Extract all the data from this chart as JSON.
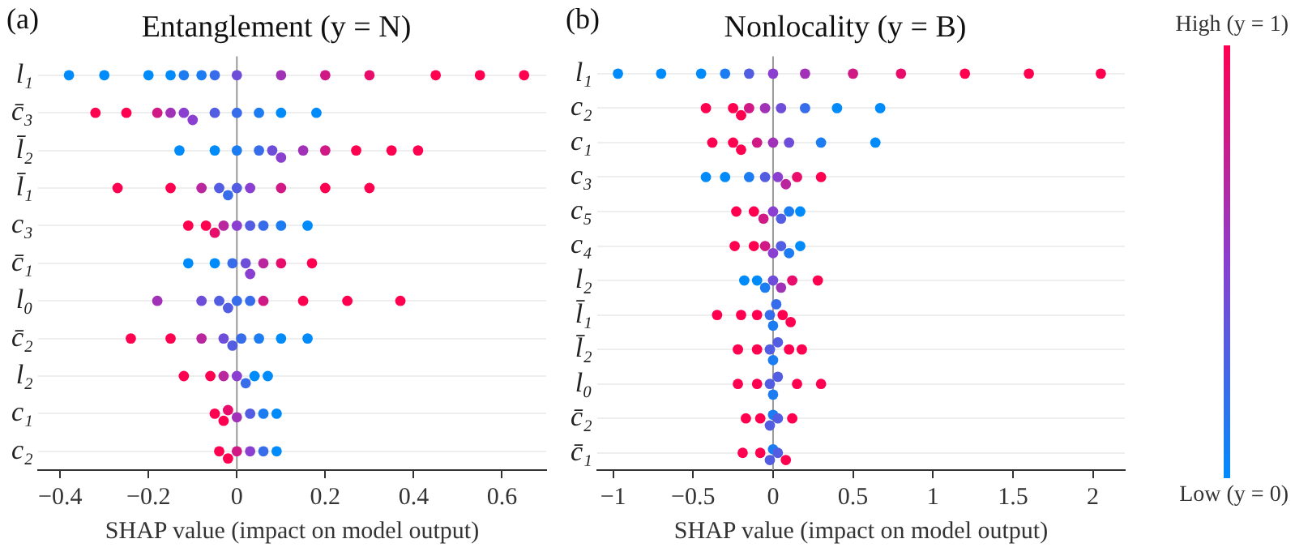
{
  "chart_data": [
    {
      "type": "scatter",
      "orientation": "horizontal",
      "title": "Entanglement (y = N)",
      "annotations": [
        "(a)"
      ],
      "xlabel": "SHAP value (impact on model output)",
      "xlim": [
        -0.45,
        0.7
      ],
      "xticks": [
        -0.4,
        -0.2,
        0.0,
        0.2,
        0.4,
        0.6
      ],
      "categories": [
        "l₁",
        "c̄₃",
        "l̄₂",
        "l̄₁",
        "c₃",
        "c̄₁",
        "l₀",
        "c̄₂",
        "l₂",
        "c₁",
        "c₂"
      ],
      "grid": "y",
      "marker": "circle",
      "ref_lines": [
        {
          "axis": "x",
          "value": 0,
          "color": "#999999"
        }
      ],
      "series": [
        {
          "x": [
            "l₁",
            "l₁",
            "l₁",
            "l₁",
            "l₁",
            "l₁",
            "l₁",
            "l₁",
            "l₁",
            "l₁",
            "l₁",
            "l₁",
            "l₁",
            "l₁"
          ],
          "values": [
            -0.38,
            -0.3,
            -0.2,
            -0.15,
            -0.12,
            -0.08,
            -0.05,
            0.0,
            0.1,
            0.2,
            0.3,
            0.45,
            0.55,
            0.65
          ],
          "colors": [
            "#008bfb",
            "#008bfb",
            "#008bfb",
            "#008bfb",
            "#1c7cf2",
            "#1c7cf2",
            "#376dea",
            "#6e4ed9",
            "#a132b7",
            "#d01984",
            "#e80d6a",
            "#ff0051",
            "#ff0051",
            "#ff0051"
          ]
        },
        {
          "x": [
            "c̄₃",
            "c̄₃",
            "c̄₃",
            "c̄₃",
            "c̄₃",
            "c̄₃",
            "c̄₃",
            "c̄₃",
            "c̄₃",
            "c̄₃",
            "c̄₃"
          ],
          "values": [
            -0.32,
            -0.25,
            -0.18,
            -0.15,
            -0.12,
            -0.1,
            -0.05,
            0.0,
            0.05,
            0.1,
            0.18
          ],
          "colors": [
            "#ff0051",
            "#ff0051",
            "#d01984",
            "#a132b7",
            "#8a3fd0",
            "#8a3fd0",
            "#535de1",
            "#376dea",
            "#1c7cf2",
            "#008bfb",
            "#008bfb"
          ]
        },
        {
          "x": [
            "l̄₂",
            "l̄₂",
            "l̄₂",
            "l̄₂",
            "l̄₂",
            "l̄₂",
            "l̄₂",
            "l̄₂",
            "l̄₂",
            "l̄₂",
            "l̄₂"
          ],
          "values": [
            -0.13,
            -0.05,
            0.0,
            0.05,
            0.08,
            0.1,
            0.15,
            0.2,
            0.27,
            0.35,
            0.41
          ],
          "colors": [
            "#008bfb",
            "#008bfb",
            "#1c7cf2",
            "#376dea",
            "#6e4ed9",
            "#8a3fd0",
            "#a132b7",
            "#d01984",
            "#ff0051",
            "#ff0051",
            "#ff0051"
          ]
        },
        {
          "x": [
            "l̄₁",
            "l̄₁",
            "l̄₁",
            "l̄₁",
            "l̄₁",
            "l̄₁",
            "l̄₁",
            "l̄₁",
            "l̄₁",
            "l̄₁"
          ],
          "values": [
            -0.27,
            -0.15,
            -0.08,
            -0.04,
            -0.02,
            0.0,
            0.03,
            0.1,
            0.2,
            0.3
          ],
          "colors": [
            "#ff0051",
            "#ff0051",
            "#b9269d",
            "#535de1",
            "#376dea",
            "#535de1",
            "#8a3fd0",
            "#d01984",
            "#ff0051",
            "#ff0051"
          ]
        },
        {
          "x": [
            "c₃",
            "c₃",
            "c₃",
            "c₃",
            "c₃",
            "c₃",
            "c₃",
            "c₃",
            "c₃"
          ],
          "values": [
            -0.11,
            -0.07,
            -0.05,
            -0.03,
            0.0,
            0.03,
            0.06,
            0.1,
            0.16
          ],
          "colors": [
            "#ff0051",
            "#ff0051",
            "#e80d6a",
            "#b9269d",
            "#8a3fd0",
            "#535de1",
            "#376dea",
            "#1c7cf2",
            "#008bfb"
          ]
        },
        {
          "x": [
            "c̄₁",
            "c̄₁",
            "c̄₁",
            "c̄₁",
            "c̄₁",
            "c̄₁",
            "c̄₁",
            "c̄₁"
          ],
          "values": [
            -0.11,
            -0.05,
            -0.01,
            0.02,
            0.03,
            0.06,
            0.1,
            0.17
          ],
          "colors": [
            "#008bfb",
            "#008bfb",
            "#376dea",
            "#6e4ed9",
            "#8a3fd0",
            "#b9269d",
            "#e80d6a",
            "#ff0051"
          ]
        },
        {
          "x": [
            "l₀",
            "l₀",
            "l₀",
            "l₀",
            "l₀",
            "l₀",
            "l₀",
            "l₀",
            "l₀",
            "l₀"
          ],
          "values": [
            -0.18,
            -0.08,
            -0.04,
            -0.02,
            0.0,
            0.03,
            0.06,
            0.15,
            0.25,
            0.37
          ],
          "colors": [
            "#a132b7",
            "#6e4ed9",
            "#535de1",
            "#535de1",
            "#376dea",
            "#376dea",
            "#d01984",
            "#ff0051",
            "#ff0051",
            "#ff0051"
          ]
        },
        {
          "x": [
            "c̄₂",
            "c̄₂",
            "c̄₂",
            "c̄₂",
            "c̄₂",
            "c̄₂",
            "c̄₂",
            "c̄₂",
            "c̄₂"
          ],
          "values": [
            -0.24,
            -0.15,
            -0.08,
            -0.03,
            -0.01,
            0.01,
            0.05,
            0.1,
            0.16
          ],
          "colors": [
            "#ff0051",
            "#ff0051",
            "#b9269d",
            "#6e4ed9",
            "#535de1",
            "#376dea",
            "#1c7cf2",
            "#008bfb",
            "#008bfb"
          ]
        },
        {
          "x": [
            "l₂",
            "l₂",
            "l₂",
            "l₂",
            "l₂",
            "l₂",
            "l₂"
          ],
          "values": [
            -0.12,
            -0.06,
            -0.03,
            0.0,
            0.02,
            0.04,
            0.07
          ],
          "colors": [
            "#ff0051",
            "#ff0051",
            "#b9269d",
            "#8a3fd0",
            "#376dea",
            "#008bfb",
            "#008bfb"
          ]
        },
        {
          "x": [
            "c₁",
            "c₁",
            "c₁",
            "c₁",
            "c₁",
            "c₁",
            "c₁"
          ],
          "values": [
            -0.05,
            -0.03,
            -0.02,
            0.0,
            0.03,
            0.06,
            0.09
          ],
          "colors": [
            "#ff0051",
            "#ff0051",
            "#e80d6a",
            "#a132b7",
            "#535de1",
            "#1c7cf2",
            "#008bfb"
          ]
        },
        {
          "x": [
            "c₂",
            "c₂",
            "c₂",
            "c₂",
            "c₂",
            "c₂"
          ],
          "values": [
            -0.04,
            -0.02,
            0.0,
            0.03,
            0.06,
            0.09
          ],
          "colors": [
            "#ff0051",
            "#ff0051",
            "#d01984",
            "#8a3fd0",
            "#376dea",
            "#008bfb"
          ]
        }
      ]
    },
    {
      "type": "scatter",
      "orientation": "horizontal",
      "title": "Nonlocality (y = B)",
      "annotations": [
        "(b)",
        "High (y = 1)",
        "Low (y = 0)"
      ],
      "xlabel": "SHAP value (impact on model output)",
      "xlim": [
        -1.1,
        2.2
      ],
      "xticks": [
        -1.0,
        -0.5,
        0.0,
        0.5,
        1.0,
        1.5,
        2.0
      ],
      "categories": [
        "l₁",
        "c₂",
        "c₁",
        "c₃",
        "c₅",
        "c₄",
        "l₂",
        "l̄₁",
        "l̄₂",
        "l₀",
        "c̄₂",
        "c̄₁"
      ],
      "grid": "y",
      "marker": "circle",
      "ref_lines": [
        {
          "axis": "x",
          "value": 0,
          "color": "#999999"
        }
      ],
      "series": [
        {
          "x": [
            "l₁",
            "l₁",
            "l₁",
            "l₁",
            "l₁",
            "l₁",
            "l₁",
            "l₁",
            "l₁",
            "l₁",
            "l₁",
            "l₁"
          ],
          "values": [
            -0.97,
            -0.7,
            -0.45,
            -0.3,
            -0.15,
            0.0,
            0.2,
            0.5,
            0.8,
            1.2,
            1.6,
            2.05
          ],
          "colors": [
            "#008bfb",
            "#008bfb",
            "#008bfb",
            "#1c7cf2",
            "#535de1",
            "#8a3fd0",
            "#a132b7",
            "#d01984",
            "#e80d6a",
            "#ff0051",
            "#ff0051",
            "#ff0051"
          ]
        },
        {
          "x": [
            "c₂",
            "c₂",
            "c₂",
            "c₂",
            "c₂",
            "c₂",
            "c₂",
            "c₂",
            "c₂"
          ],
          "values": [
            -0.42,
            -0.25,
            -0.2,
            -0.15,
            -0.05,
            0.05,
            0.2,
            0.4,
            0.67
          ],
          "colors": [
            "#ff0051",
            "#ff0051",
            "#ff0051",
            "#d01984",
            "#a132b7",
            "#6e4ed9",
            "#376dea",
            "#008bfb",
            "#008bfb"
          ]
        },
        {
          "x": [
            "c₁",
            "c₁",
            "c₁",
            "c₁",
            "c₁",
            "c₁",
            "c₁",
            "c₁"
          ],
          "values": [
            -0.38,
            -0.25,
            -0.2,
            -0.1,
            0.0,
            0.1,
            0.3,
            0.64
          ],
          "colors": [
            "#ff0051",
            "#ff0051",
            "#ff0051",
            "#d01984",
            "#a132b7",
            "#6e4ed9",
            "#1c7cf2",
            "#008bfb"
          ]
        },
        {
          "x": [
            "c₃",
            "c₃",
            "c₃",
            "c₃",
            "c₃",
            "c₃",
            "c₃",
            "c₃"
          ],
          "values": [
            -0.42,
            -0.3,
            -0.15,
            -0.05,
            0.03,
            0.08,
            0.15,
            0.3
          ],
          "colors": [
            "#008bfb",
            "#008bfb",
            "#1c7cf2",
            "#535de1",
            "#8a3fd0",
            "#b9269d",
            "#e80d6a",
            "#ff0051"
          ]
        },
        {
          "x": [
            "c₅",
            "c₅",
            "c₅",
            "c₅",
            "c₅",
            "c₅",
            "c₅"
          ],
          "values": [
            -0.23,
            -0.12,
            -0.06,
            0.0,
            0.05,
            0.1,
            0.17
          ],
          "colors": [
            "#ff0051",
            "#ff0051",
            "#d01984",
            "#8a3fd0",
            "#535de1",
            "#1c7cf2",
            "#008bfb"
          ]
        },
        {
          "x": [
            "c₄",
            "c₄",
            "c₄",
            "c₄",
            "c₄",
            "c₄",
            "c₄"
          ],
          "values": [
            -0.24,
            -0.12,
            -0.05,
            0.0,
            0.05,
            0.1,
            0.17
          ],
          "colors": [
            "#ff0051",
            "#ff0051",
            "#d01984",
            "#8a3fd0",
            "#535de1",
            "#1c7cf2",
            "#008bfb"
          ]
        },
        {
          "x": [
            "l₂",
            "l₂",
            "l₂",
            "l₂",
            "l₂",
            "l₂",
            "l₂"
          ],
          "values": [
            -0.18,
            -0.1,
            -0.05,
            0.0,
            0.05,
            0.12,
            0.28
          ],
          "colors": [
            "#008bfb",
            "#008bfb",
            "#1c7cf2",
            "#6e4ed9",
            "#a132b7",
            "#e80d6a",
            "#ff0051"
          ]
        },
        {
          "x": [
            "l̄₁",
            "l̄₁",
            "l̄₁",
            "l̄₁",
            "l̄₁",
            "l̄₁",
            "l̄₁",
            "l̄₁"
          ],
          "values": [
            -0.35,
            -0.2,
            -0.1,
            -0.02,
            0.0,
            0.02,
            0.06,
            0.11
          ],
          "colors": [
            "#ff0051",
            "#ff0051",
            "#ff0051",
            "#376dea",
            "#1c7cf2",
            "#376dea",
            "#ff0051",
            "#ff0051"
          ]
        },
        {
          "x": [
            "l̄₂",
            "l̄₂",
            "l̄₂",
            "l̄₂",
            "l̄₂",
            "l̄₂",
            "l̄₂"
          ],
          "values": [
            -0.22,
            -0.1,
            -0.02,
            0.0,
            0.03,
            0.1,
            0.18
          ],
          "colors": [
            "#ff0051",
            "#ff0051",
            "#535de1",
            "#1c7cf2",
            "#535de1",
            "#ff0051",
            "#ff0051"
          ]
        },
        {
          "x": [
            "l₀",
            "l₀",
            "l₀",
            "l₀",
            "l₀",
            "l₀",
            "l₀"
          ],
          "values": [
            -0.22,
            -0.1,
            -0.02,
            0.0,
            0.03,
            0.15,
            0.3
          ],
          "colors": [
            "#ff0051",
            "#ff0051",
            "#535de1",
            "#1c7cf2",
            "#535de1",
            "#ff0051",
            "#ff0051"
          ]
        },
        {
          "x": [
            "c̄₂",
            "c̄₂",
            "c̄₂",
            "c̄₂",
            "c̄₂",
            "c̄₂"
          ],
          "values": [
            -0.17,
            -0.08,
            -0.02,
            0.0,
            0.03,
            0.12
          ],
          "colors": [
            "#ff0051",
            "#ff0051",
            "#535de1",
            "#1c7cf2",
            "#535de1",
            "#ff0051"
          ]
        },
        {
          "x": [
            "c̄₁",
            "c̄₁",
            "c̄₁",
            "c̄₁",
            "c̄₁",
            "c̄₁"
          ],
          "values": [
            -0.19,
            -0.08,
            -0.02,
            0.0,
            0.03,
            0.08
          ],
          "colors": [
            "#ff0051",
            "#ff0051",
            "#535de1",
            "#1c7cf2",
            "#535de1",
            "#ff0051"
          ]
        }
      ]
    }
  ]
}
